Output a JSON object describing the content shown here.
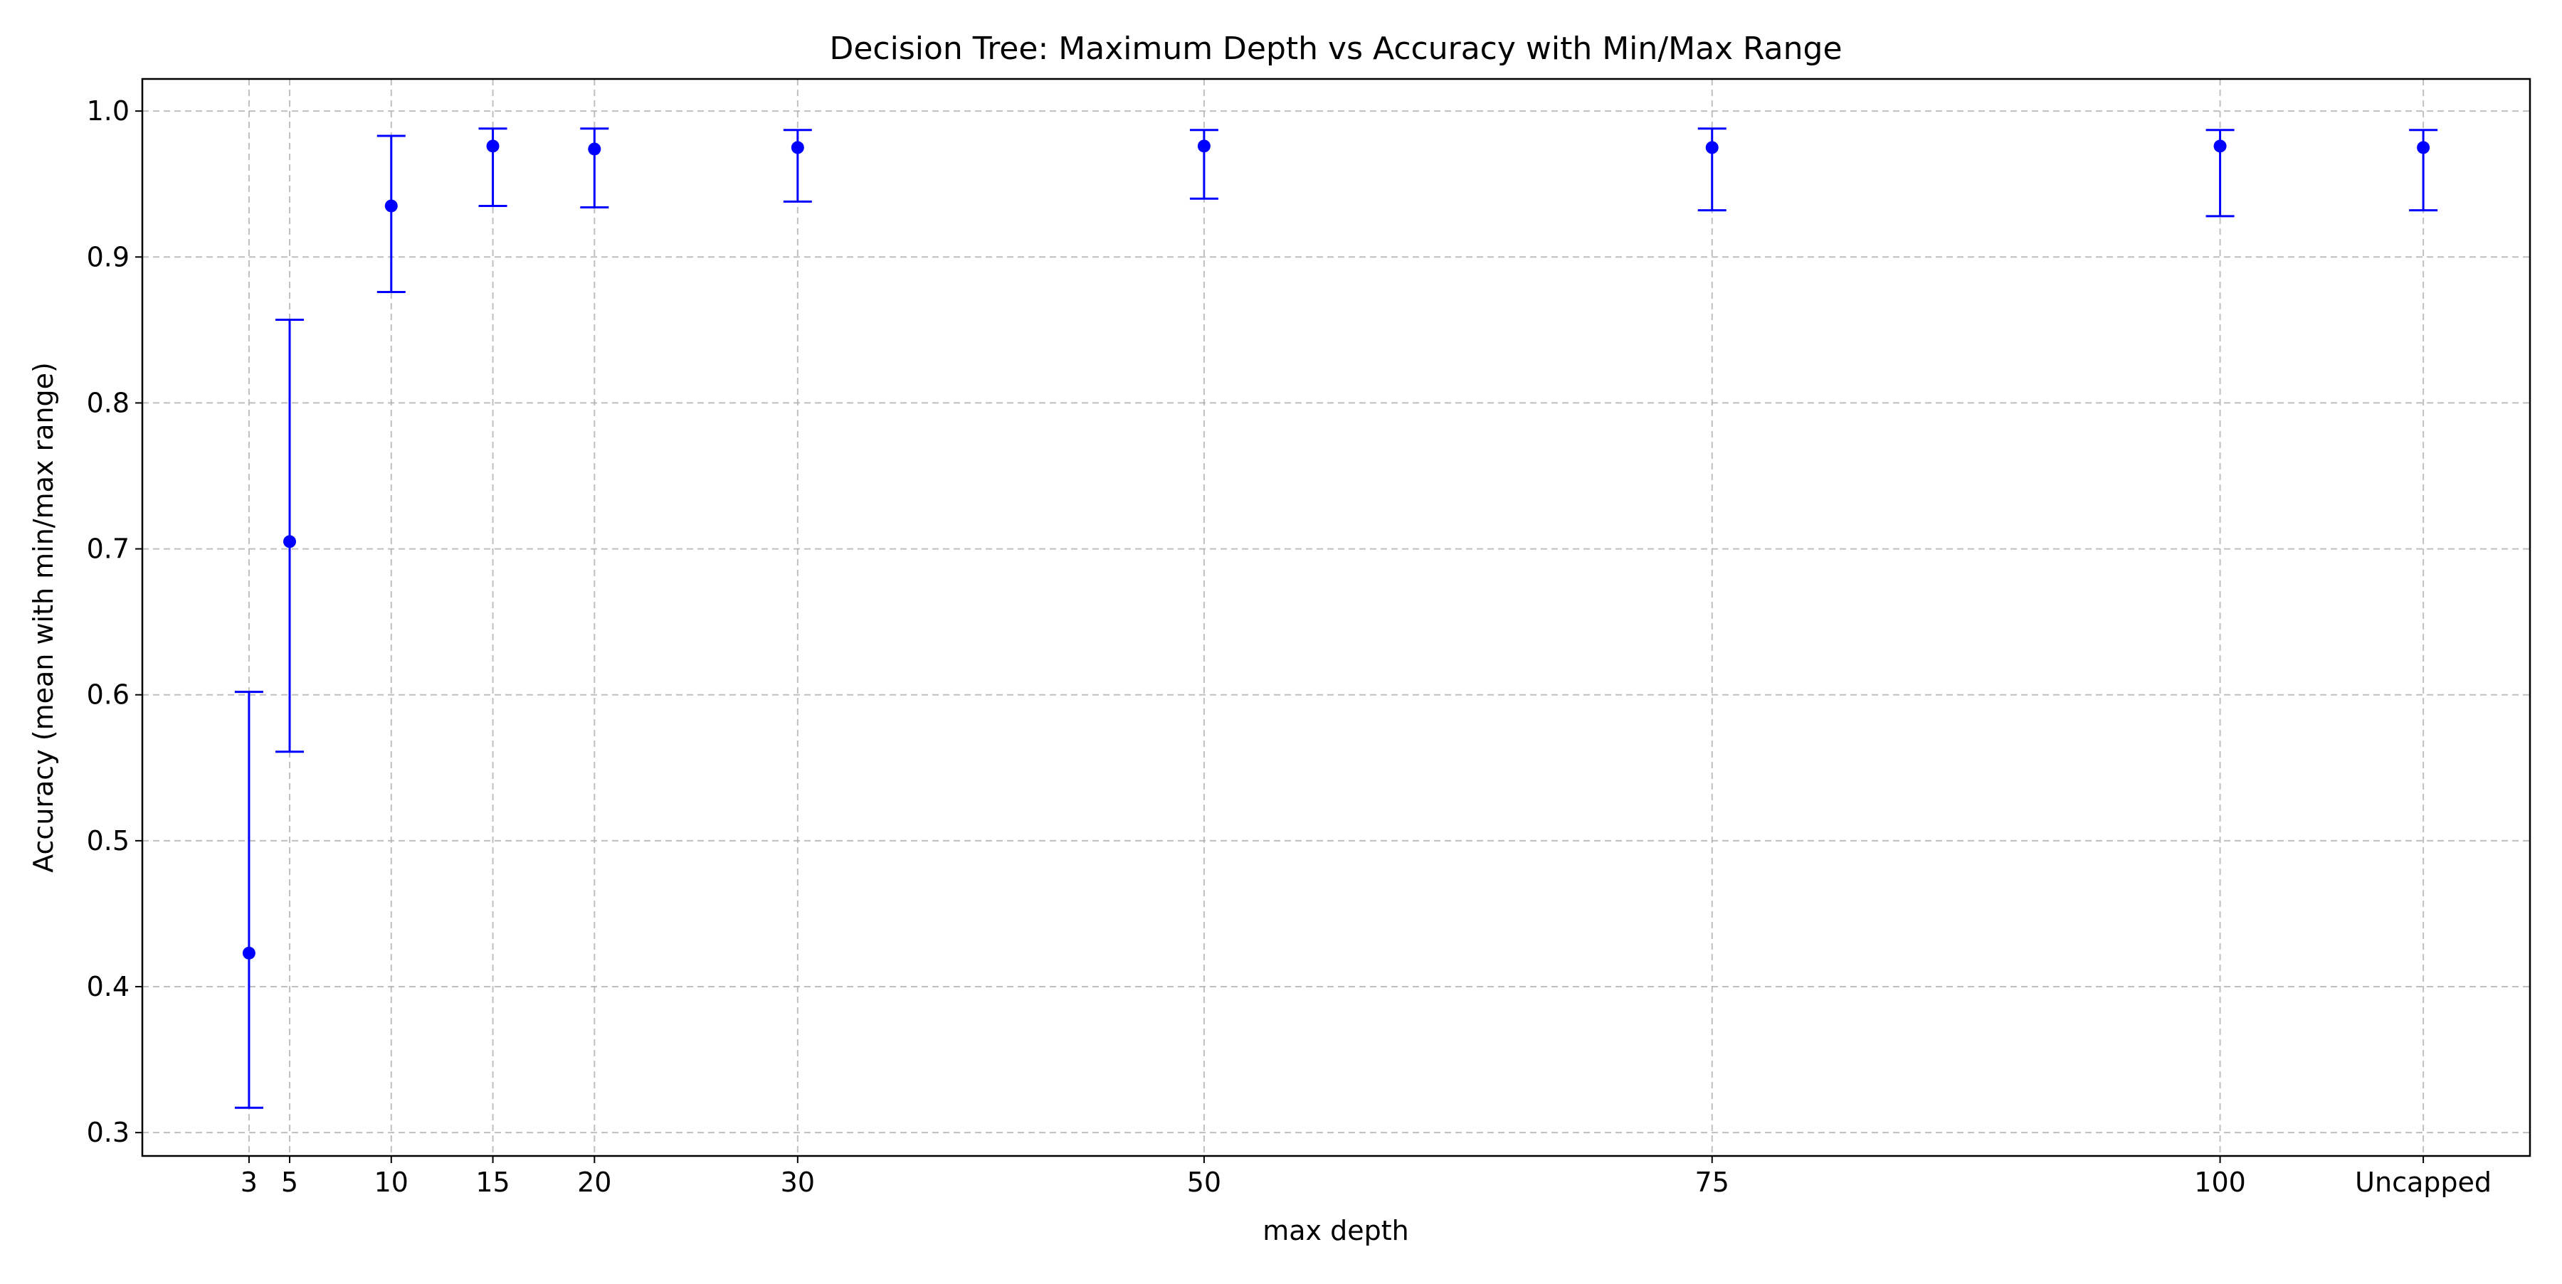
{
  "chart_data": {
    "type": "scatter",
    "title": "Decision Tree: Maximum Depth vs Accuracy with Min/Max Range",
    "xlabel": "max depth",
    "ylabel": "Accuracy (mean with min/max range)",
    "x_ticks": [
      "3",
      "5",
      "10",
      "15",
      "20",
      "30",
      "50",
      "75",
      "100",
      "Uncapped"
    ],
    "x_positions": [
      3,
      5,
      10,
      15,
      20,
      30,
      50,
      75,
      100,
      110
    ],
    "xlim": [
      -2.25,
      115.25
    ],
    "y_ticks": [
      "0.3",
      "0.4",
      "0.5",
      "0.6",
      "0.7",
      "0.8",
      "0.9",
      "1.0"
    ],
    "y_tick_values": [
      0.3,
      0.4,
      0.5,
      0.6,
      0.7,
      0.8,
      0.9,
      1.0
    ],
    "ylim": [
      0.284,
      1.022
    ],
    "grid": true,
    "series": [
      {
        "color": "#0000ff",
        "marker": "circle",
        "mean": [
          0.423,
          0.705,
          0.935,
          0.976,
          0.974,
          0.975,
          0.976,
          0.975,
          0.976,
          0.975
        ],
        "min": [
          0.317,
          0.561,
          0.876,
          0.935,
          0.934,
          0.938,
          0.94,
          0.932,
          0.928,
          0.932
        ],
        "max": [
          0.602,
          0.857,
          0.983,
          0.988,
          0.988,
          0.987,
          0.987,
          0.988,
          0.987,
          0.987
        ]
      }
    ]
  }
}
